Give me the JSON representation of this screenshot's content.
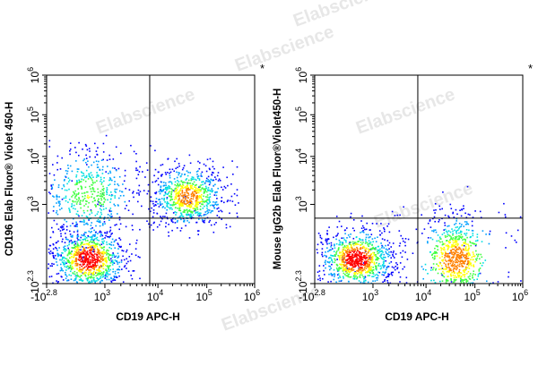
{
  "watermark": "Elabscience",
  "colors": {
    "axis": "#000000",
    "gate": "#000000",
    "density": [
      "#0000ff",
      "#00a0ff",
      "#00e0e0",
      "#40ff40",
      "#ffff00",
      "#ff8000",
      "#ff0000"
    ],
    "watermark": "#d4d4d4"
  },
  "chart_data": [
    {
      "type": "scatter",
      "subtype": "flow-cytometry-density-plot",
      "xlabel": "CD19 APC-H",
      "ylabel": "CD196 Elab Fluor® Violet 450-H",
      "x_ticks": [
        "-10",
        "10",
        "10",
        "10",
        "10"
      ],
      "x_tick_exponents": [
        "2.8",
        "3",
        "4",
        "5",
        "6"
      ],
      "y_ticks": [
        "-10",
        "10",
        "10",
        "10",
        "10"
      ],
      "y_tick_exponents": [
        "2.3",
        "3",
        "4",
        "5",
        "6"
      ],
      "corner_mark": "*",
      "gate": {
        "x": 7000,
        "y": 700
      },
      "populations": [
        {
          "x": 500,
          "y": -50,
          "density": "very high"
        },
        {
          "x": 500,
          "y": 1600,
          "density": "medium"
        },
        {
          "x": 40000,
          "y": 1500,
          "density": "high"
        }
      ]
    },
    {
      "type": "scatter",
      "subtype": "flow-cytometry-density-plot",
      "xlabel": "CD19 APC-H",
      "ylabel": "Mouse IgG2b Elab Fluor®Violet450-H",
      "x_ticks": [
        "-10",
        "10",
        "10",
        "10",
        "10"
      ],
      "x_tick_exponents": [
        "2.8",
        "3",
        "4",
        "5",
        "6"
      ],
      "y_ticks": [
        "-10",
        "10",
        "10",
        "10",
        "10"
      ],
      "y_tick_exponents": [
        "2.3",
        "3",
        "4",
        "5",
        "6"
      ],
      "corner_mark": "*",
      "gate": {
        "x": 7000,
        "y": 700
      },
      "populations": [
        {
          "x": 500,
          "y": -50,
          "density": "very high"
        },
        {
          "x": 40000,
          "y": -50,
          "density": "high"
        }
      ]
    }
  ]
}
